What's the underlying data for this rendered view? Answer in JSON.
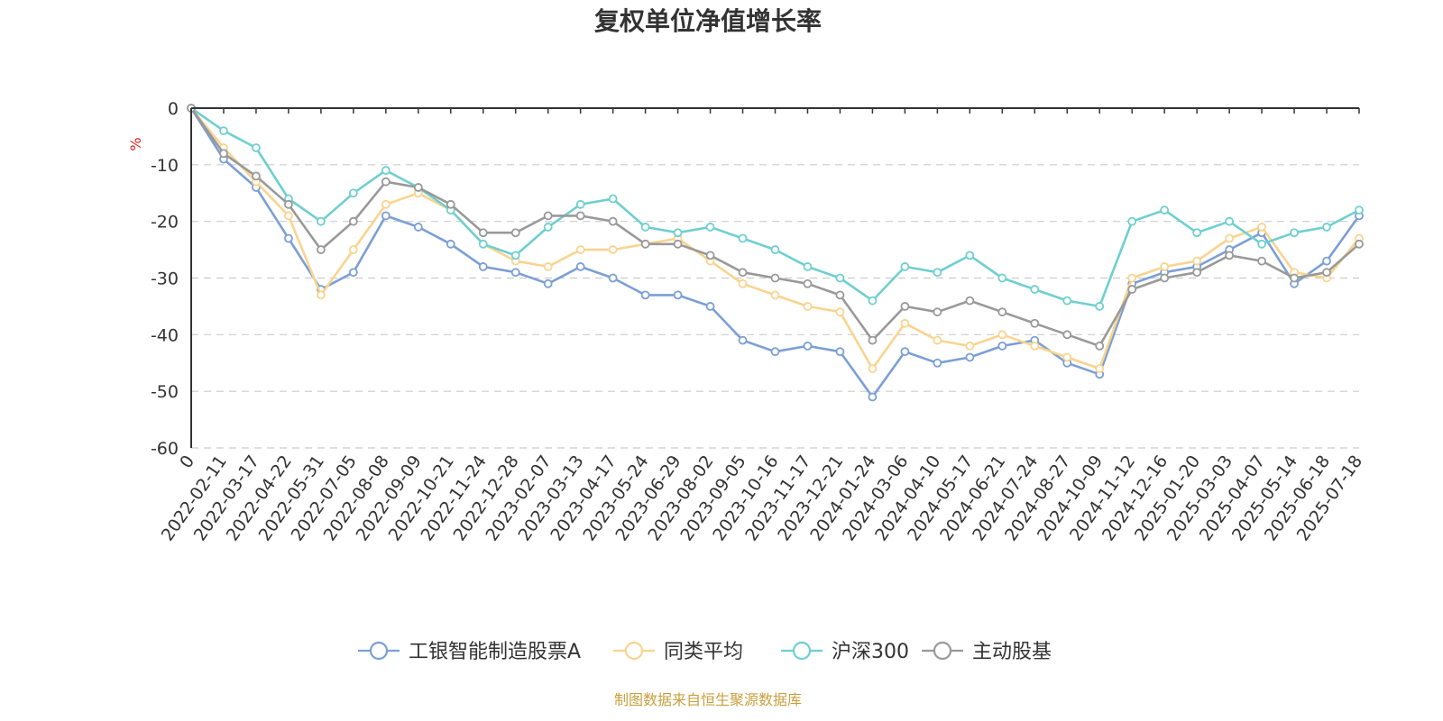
{
  "chart_data": {
    "type": "line",
    "title": "复权单位净值增长率",
    "ylabel": "%",
    "ylim": [
      -60,
      0
    ],
    "yticks": [
      0,
      -10,
      -20,
      -30,
      -40,
      -50,
      -60
    ],
    "grid": true,
    "legend_position": "bottom",
    "source": "制图数据来自恒生聚源数据库",
    "x": [
      "0",
      "2022-02-11",
      "2022-03-17",
      "2022-04-22",
      "2022-05-31",
      "2022-07-05",
      "2022-08-08",
      "2022-09-09",
      "2022-10-21",
      "2022-11-24",
      "2022-12-28",
      "2023-02-07",
      "2023-03-13",
      "2023-04-17",
      "2023-05-24",
      "2023-06-29",
      "2023-08-02",
      "2023-09-05",
      "2023-10-16",
      "2023-11-17",
      "2023-12-21",
      "2024-01-24",
      "2024-03-06",
      "2024-04-10",
      "2024-05-17",
      "2024-06-21",
      "2024-07-24",
      "2024-08-27",
      "2024-10-09",
      "2024-11-12",
      "2024-12-16",
      "2025-01-20",
      "2025-03-03",
      "2025-04-07",
      "2025-05-14",
      "2025-06-18",
      "2025-07-18"
    ],
    "series": [
      {
        "name": "工银智能制造股票A",
        "color": "#7b9fd4",
        "values": [
          0,
          -9,
          -14,
          -23,
          -32,
          -29,
          -19,
          -21,
          -24,
          -28,
          -29,
          -31,
          -28,
          -30,
          -33,
          -33,
          -35,
          -41,
          -43,
          -42,
          -43,
          -51,
          -43,
          -45,
          -44,
          -42,
          -41,
          -45,
          -47,
          -31,
          -29,
          -28,
          -25,
          -22,
          -31,
          -27,
          -19
        ]
      },
      {
        "name": "同类平均",
        "color": "#f9d48f",
        "values": [
          0,
          -7,
          -13,
          -19,
          -33,
          -25,
          -17,
          -15,
          -18,
          -24,
          -27,
          -28,
          -25,
          -25,
          -24,
          -23,
          -27,
          -31,
          -33,
          -35,
          -36,
          -46,
          -38,
          -41,
          -42,
          -40,
          -42,
          -44,
          -46,
          -30,
          -28,
          -27,
          -23,
          -21,
          -29,
          -30,
          -23
        ]
      },
      {
        "name": "沪深300",
        "color": "#6fcfcf",
        "values": [
          0,
          -4,
          -7,
          -16,
          -20,
          -15,
          -11,
          -14,
          -18,
          -24,
          -26,
          -21,
          -17,
          -16,
          -21,
          -22,
          -21,
          -23,
          -25,
          -28,
          -30,
          -34,
          -28,
          -29,
          -26,
          -30,
          -32,
          -34,
          -35,
          -20,
          -18,
          -22,
          -20,
          -24,
          -22,
          -21,
          -18
        ]
      },
      {
        "name": "主动股基",
        "color": "#999999",
        "values": [
          0,
          -8,
          -12,
          -17,
          -25,
          -20,
          -13,
          -14,
          -17,
          -22,
          -22,
          -19,
          -19,
          -20,
          -24,
          -24,
          -26,
          -29,
          -30,
          -31,
          -33,
          -41,
          -35,
          -36,
          -34,
          -36,
          -38,
          -40,
          -42,
          -32,
          -30,
          -29,
          -26,
          -27,
          -30,
          -29,
          -24
        ]
      }
    ]
  }
}
